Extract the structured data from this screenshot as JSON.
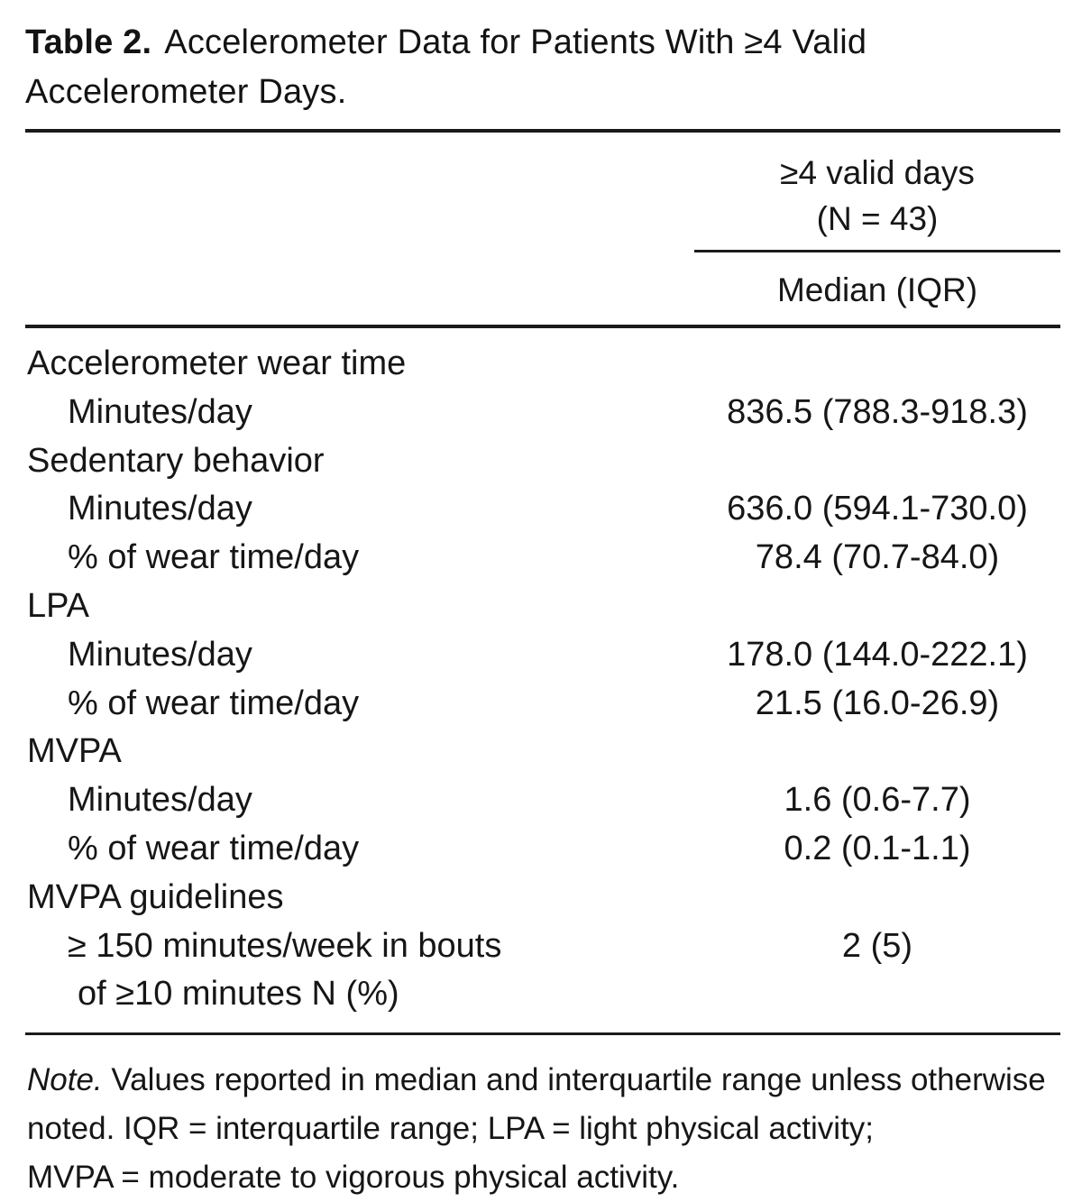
{
  "title": {
    "prefix": "Table 2.",
    "line1": "Accelerometer Data for Patients With ≥4 Valid",
    "line2": "Accelerometer Days."
  },
  "header": {
    "spanner_line1": "≥4 valid days",
    "spanner_line2": "(N = 43)",
    "column": "Median (IQR)"
  },
  "rows": [
    {
      "label": "Accelerometer wear time",
      "value": "",
      "indent": false
    },
    {
      "label": "Minutes/day",
      "value": "836.5 (788.3-918.3)",
      "indent": true
    },
    {
      "label": "Sedentary behavior",
      "value": "",
      "indent": false
    },
    {
      "label": "Minutes/day",
      "value": "636.0 (594.1-730.0)",
      "indent": true
    },
    {
      "label": "% of wear time/day",
      "value": "78.4 (70.7-84.0)",
      "indent": true
    },
    {
      "label": "LPA",
      "value": "",
      "indent": false
    },
    {
      "label": "Minutes/day",
      "value": "178.0 (144.0-222.1)",
      "indent": true
    },
    {
      "label": "% of wear time/day",
      "value": "21.5 (16.0-26.9)",
      "indent": true
    },
    {
      "label": "MVPA",
      "value": "",
      "indent": false
    },
    {
      "label": "Minutes/day",
      "value": "1.6 (0.6-7.7)",
      "indent": true
    },
    {
      "label": "% of wear time/day",
      "value": "0.2 (0.1-1.1)",
      "indent": true
    },
    {
      "label": "MVPA guidelines",
      "value": "",
      "indent": false
    },
    {
      "label": "≥ 150 minutes/week in bouts",
      "label2": "of ≥10 minutes N (%)",
      "value": "2 (5)",
      "indent": true
    }
  ],
  "note": {
    "prefix": "Note.",
    "lines": [
      "Values reported in median and interquartile range unless otherwise",
      "noted. IQR = interquartile range; LPA = light physical activity;",
      "MVPA = moderate to vigorous physical activity."
    ]
  },
  "colors": {
    "text": "#161616",
    "rule": "#1b1b1b",
    "background": "#ffffff"
  }
}
